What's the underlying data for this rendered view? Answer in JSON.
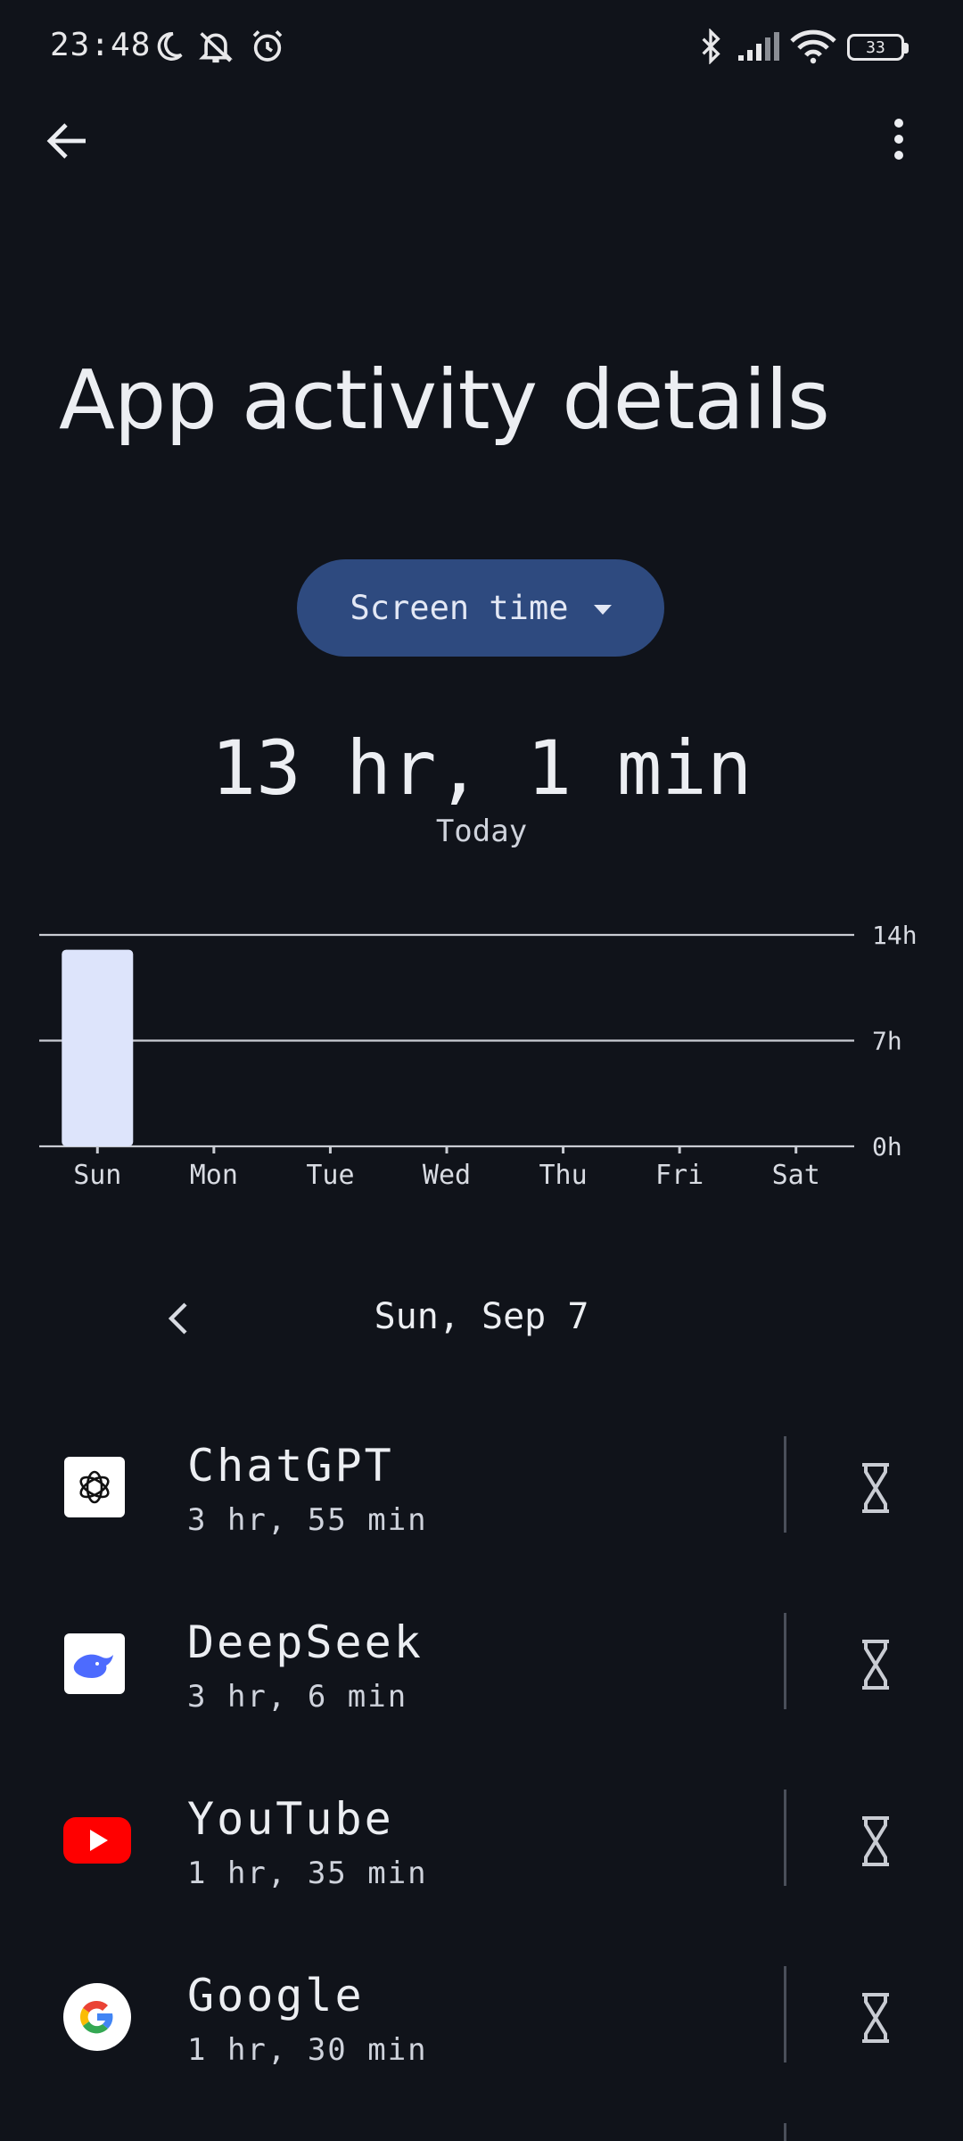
{
  "status_bar": {
    "time": "23:48",
    "battery": "33",
    "icons": [
      "moon-icon",
      "bell-off-icon",
      "alarm-icon",
      "bluetooth-icon",
      "signal-icon",
      "wifi-icon",
      "battery-icon"
    ]
  },
  "top_bar": {
    "back_icon": "arrow-back-icon",
    "more_icon": "more-vert-icon"
  },
  "page_title": "App activity details",
  "metric_selector": {
    "label": "Screen time"
  },
  "summary": {
    "total": "13 hr, 1 min",
    "label": "Today"
  },
  "chart_data": {
    "type": "bar",
    "categories": [
      "Sun",
      "Mon",
      "Tue",
      "Wed",
      "Thu",
      "Fri",
      "Sat"
    ],
    "values": [
      13.02,
      0,
      0,
      0,
      0,
      0,
      0
    ],
    "y_ticks": [
      "14h",
      "7h",
      "0h"
    ],
    "ylim": [
      0,
      14
    ],
    "bar_color": "#dde4fb",
    "grid": true
  },
  "date_nav": {
    "date": "Sun, Sep 7",
    "prev_icon": "chevron-left-icon"
  },
  "apps": [
    {
      "name": "ChatGPT",
      "time": "3 hr, 55 min",
      "icon": "chatgpt-icon"
    },
    {
      "name": "DeepSeek",
      "time": "3 hr, 6 min",
      "icon": "deepseek-icon"
    },
    {
      "name": "YouTube",
      "time": "1 hr, 35 min",
      "icon": "youtube-icon"
    },
    {
      "name": "Google",
      "time": "1 hr, 30 min",
      "icon": "google-icon"
    }
  ],
  "colors": {
    "background": "#10131a",
    "dropdown": "#2e4a7f",
    "bar": "#dde4fb"
  }
}
